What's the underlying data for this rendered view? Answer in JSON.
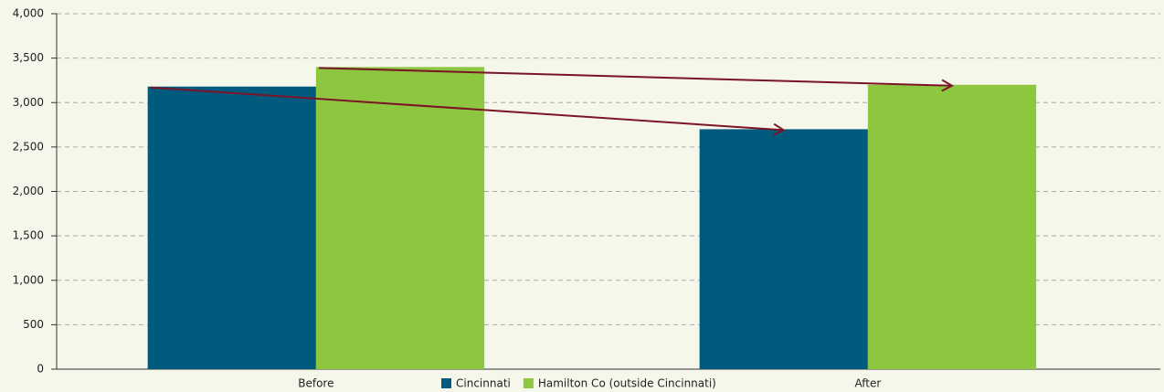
{
  "chart_data": {
    "type": "bar",
    "categories": [
      "Before",
      "After"
    ],
    "series": [
      {
        "name": "Cincinnati",
        "color": "#005a7e",
        "values": [
          3180,
          2700
        ]
      },
      {
        "name": "Hamilton Co (outside Cincinnati)",
        "color": "#8dc63f",
        "values": [
          3400,
          3200
        ]
      }
    ],
    "ylim": [
      0,
      4000
    ],
    "yticks": [
      0,
      500,
      {
        "value": 1000,
        "label": "1,000"
      },
      {
        "value": 1500,
        "label": "1,500"
      },
      {
        "value": 2000,
        "label": "2,000"
      },
      {
        "value": 2500,
        "label": "2,500"
      },
      {
        "value": 3000,
        "label": "3,000"
      },
      {
        "value": 3500,
        "label": "3,500"
      },
      {
        "value": 4000,
        "label": "4,000"
      }
    ],
    "grid": true,
    "legend": "bottom"
  }
}
